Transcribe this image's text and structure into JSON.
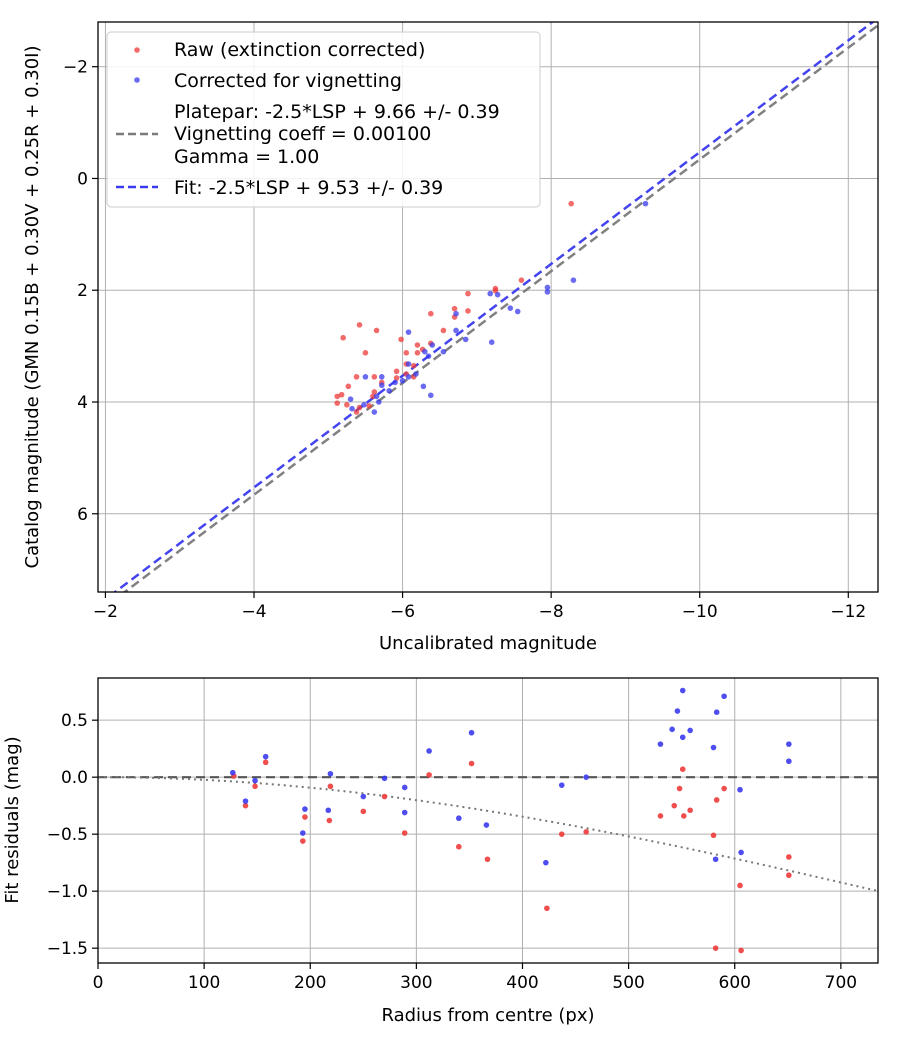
{
  "chart_data": [
    {
      "type": "scatter",
      "xlabel": "Uncalibrated magnitude",
      "ylabel": "Catalog magnitude (GMN 0.15B + 0.30V + 0.25R + 0.30I)",
      "xlim": [
        -1.9,
        -12.4
      ],
      "ylim": [
        7.4,
        -2.8
      ],
      "x_ticks": [
        -2,
        -4,
        -6,
        -8,
        -10,
        -12
      ],
      "x_tick_labels": [
        "−2",
        "−4",
        "−6",
        "−8",
        "−10",
        "−12"
      ],
      "y_ticks": [
        -2,
        0,
        2,
        4,
        6
      ],
      "y_tick_labels": [
        "−2",
        "0",
        "2",
        "4",
        "6"
      ],
      "grid": true,
      "legend_position": "top-left",
      "legend": {
        "raw": "Raw (extinction corrected)",
        "corrected": "Corrected for vignetting",
        "platepar_lines": [
          "Platepar: -2.5*LSP + 9.66 +/- 0.39",
          "Vignetting coeff = 0.00100",
          "Gamma = 1.00"
        ],
        "fit": "Fit: -2.5*LSP + 9.53 +/- 0.39"
      },
      "colors": {
        "raw": "#ee3a3a",
        "corrected": "#3a3aee",
        "platepar_line": "#7a7a7a",
        "fit_line": "#3a3aee"
      },
      "lines": [
        {
          "name": "Platepar",
          "slope": 1.0,
          "intercept": 9.66,
          "style": "dashed",
          "color": "#7a7a7a"
        },
        {
          "name": "Fit",
          "slope": 1.0,
          "intercept": 9.53,
          "style": "dashed",
          "color": "#3a3aee"
        }
      ],
      "series": [
        {
          "name": "Raw (extinction corrected)",
          "color": "#ee3a3a",
          "points": [
            [
              -8.27,
              0.45
            ],
            [
              -7.6,
              1.82
            ],
            [
              -7.25,
              1.97
            ],
            [
              -7.25,
              2.01
            ],
            [
              -6.88,
              2.06
            ],
            [
              -6.88,
              2.37
            ],
            [
              -6.7,
              2.33
            ],
            [
              -6.7,
              2.48
            ],
            [
              -6.38,
              2.42
            ],
            [
              -6.55,
              2.72
            ],
            [
              -5.42,
              2.62
            ],
            [
              -5.65,
              2.72
            ],
            [
              -5.2,
              2.85
            ],
            [
              -5.98,
              2.88
            ],
            [
              -6.2,
              2.98
            ],
            [
              -6.38,
              2.95
            ],
            [
              -5.5,
              3.12
            ],
            [
              -6.27,
              3.06
            ],
            [
              -6.05,
              3.12
            ],
            [
              -6.2,
              3.12
            ],
            [
              -6.05,
              3.32
            ],
            [
              -6.15,
              3.35
            ],
            [
              -5.92,
              3.45
            ],
            [
              -6.05,
              3.5
            ],
            [
              -6.15,
              3.55
            ],
            [
              -5.38,
              3.55
            ],
            [
              -5.62,
              3.55
            ],
            [
              -5.92,
              3.57
            ],
            [
              -5.72,
              3.65
            ],
            [
              -5.27,
              3.72
            ],
            [
              -5.62,
              3.82
            ],
            [
              -5.12,
              3.9
            ],
            [
              -5.18,
              3.87
            ],
            [
              -5.12,
              4.02
            ],
            [
              -5.25,
              4.05
            ],
            [
              -5.42,
              4.1
            ],
            [
              -5.55,
              4.07
            ],
            [
              -5.38,
              4.18
            ],
            [
              -5.6,
              3.9
            ]
          ]
        },
        {
          "name": "Corrected for vignetting",
          "color": "#3a3aee",
          "points": [
            [
              -9.27,
              0.45
            ],
            [
              -8.3,
              1.82
            ],
            [
              -7.95,
              1.95
            ],
            [
              -7.95,
              2.03
            ],
            [
              -7.55,
              2.38
            ],
            [
              -7.45,
              2.32
            ],
            [
              -7.28,
              2.08
            ],
            [
              -7.18,
              2.06
            ],
            [
              -7.2,
              2.93
            ],
            [
              -6.85,
              2.88
            ],
            [
              -6.72,
              2.72
            ],
            [
              -6.72,
              2.42
            ],
            [
              -6.55,
              3.1
            ],
            [
              -6.4,
              2.98
            ],
            [
              -6.3,
              3.1
            ],
            [
              -6.35,
              3.18
            ],
            [
              -6.08,
              2.75
            ],
            [
              -6.08,
              3.32
            ],
            [
              -6.18,
              3.5
            ],
            [
              -6.28,
              3.72
            ],
            [
              -6.38,
              3.88
            ],
            [
              -6.08,
              3.55
            ],
            [
              -6.0,
              3.62
            ],
            [
              -5.9,
              3.65
            ],
            [
              -5.72,
              3.7
            ],
            [
              -5.82,
              3.8
            ],
            [
              -5.5,
              3.55
            ],
            [
              -5.72,
              3.55
            ],
            [
              -5.68,
              4.0
            ],
            [
              -5.62,
              4.18
            ],
            [
              -5.48,
              4.05
            ],
            [
              -5.3,
              3.95
            ],
            [
              -5.32,
              4.12
            ],
            [
              -5.65,
              3.9
            ]
          ]
        }
      ]
    },
    {
      "type": "scatter",
      "xlabel": "Radius from centre (px)",
      "ylabel": "Fit residuals (mag)",
      "xlim": [
        0,
        735
      ],
      "ylim": [
        -1.63,
        0.87
      ],
      "x_ticks": [
        0,
        100,
        200,
        300,
        400,
        500,
        600,
        700
      ],
      "x_tick_labels": [
        "0",
        "100",
        "200",
        "300",
        "400",
        "500",
        "600",
        "700"
      ],
      "y_ticks": [
        0.5,
        0.0,
        -0.5,
        -1.0,
        -1.5
      ],
      "y_tick_labels": [
        "0.5",
        "0.0",
        "−0.5",
        "−1.0",
        "−1.5"
      ],
      "grid": true,
      "reference_line": {
        "y": 0.0,
        "style": "dashed",
        "color": "#555555"
      },
      "vignetting_curve": {
        "style": "dotted",
        "color": "#777777",
        "coeff": 0.001
      },
      "series": [
        {
          "name": "Raw (extinction corrected)",
          "color": "#ee3a3a",
          "points": [
            [
              128,
              0.01
            ],
            [
              139,
              -0.25
            ],
            [
              148,
              -0.08
            ],
            [
              158,
              0.13
            ],
            [
              193,
              -0.56
            ],
            [
              195,
              -0.35
            ],
            [
              218,
              -0.38
            ],
            [
              219,
              -0.08
            ],
            [
              250,
              -0.3
            ],
            [
              270,
              -0.17
            ],
            [
              289,
              -0.49
            ],
            [
              312,
              0.02
            ],
            [
              340,
              -0.61
            ],
            [
              352,
              0.12
            ],
            [
              367,
              -0.72
            ],
            [
              423,
              -1.15
            ],
            [
              437,
              -0.5
            ],
            [
              460,
              -0.48
            ],
            [
              530,
              -0.34
            ],
            [
              543,
              -0.25
            ],
            [
              548,
              -0.1
            ],
            [
              552,
              -0.34
            ],
            [
              551,
              0.07
            ],
            [
              558,
              -0.29
            ],
            [
              580,
              -0.51
            ],
            [
              582,
              -1.5
            ],
            [
              583,
              -0.2
            ],
            [
              590,
              -0.1
            ],
            [
              605,
              -0.95
            ],
            [
              606,
              -1.52
            ],
            [
              651,
              -0.7
            ],
            [
              651,
              -0.86
            ]
          ]
        },
        {
          "name": "Corrected for vignetting",
          "color": "#3a3aee",
          "points": [
            [
              127,
              0.04
            ],
            [
              139,
              -0.21
            ],
            [
              148,
              -0.03
            ],
            [
              158,
              0.18
            ],
            [
              193,
              -0.49
            ],
            [
              195,
              -0.28
            ],
            [
              217,
              -0.29
            ],
            [
              219,
              0.03
            ],
            [
              250,
              -0.17
            ],
            [
              270,
              -0.01
            ],
            [
              289,
              -0.31
            ],
            [
              289,
              -0.09
            ],
            [
              312,
              0.23
            ],
            [
              340,
              -0.36
            ],
            [
              352,
              0.39
            ],
            [
              366,
              -0.42
            ],
            [
              422,
              -0.75
            ],
            [
              437,
              -0.07
            ],
            [
              460,
              0.0
            ],
            [
              530,
              0.29
            ],
            [
              541,
              0.42
            ],
            [
              546,
              0.58
            ],
            [
              551,
              0.35
            ],
            [
              551,
              0.76
            ],
            [
              558,
              0.41
            ],
            [
              580,
              0.26
            ],
            [
              582,
              -0.72
            ],
            [
              583,
              0.57
            ],
            [
              590,
              0.71
            ],
            [
              605,
              -0.11
            ],
            [
              606,
              -0.66
            ],
            [
              651,
              0.29
            ],
            [
              651,
              0.14
            ]
          ]
        }
      ]
    }
  ]
}
